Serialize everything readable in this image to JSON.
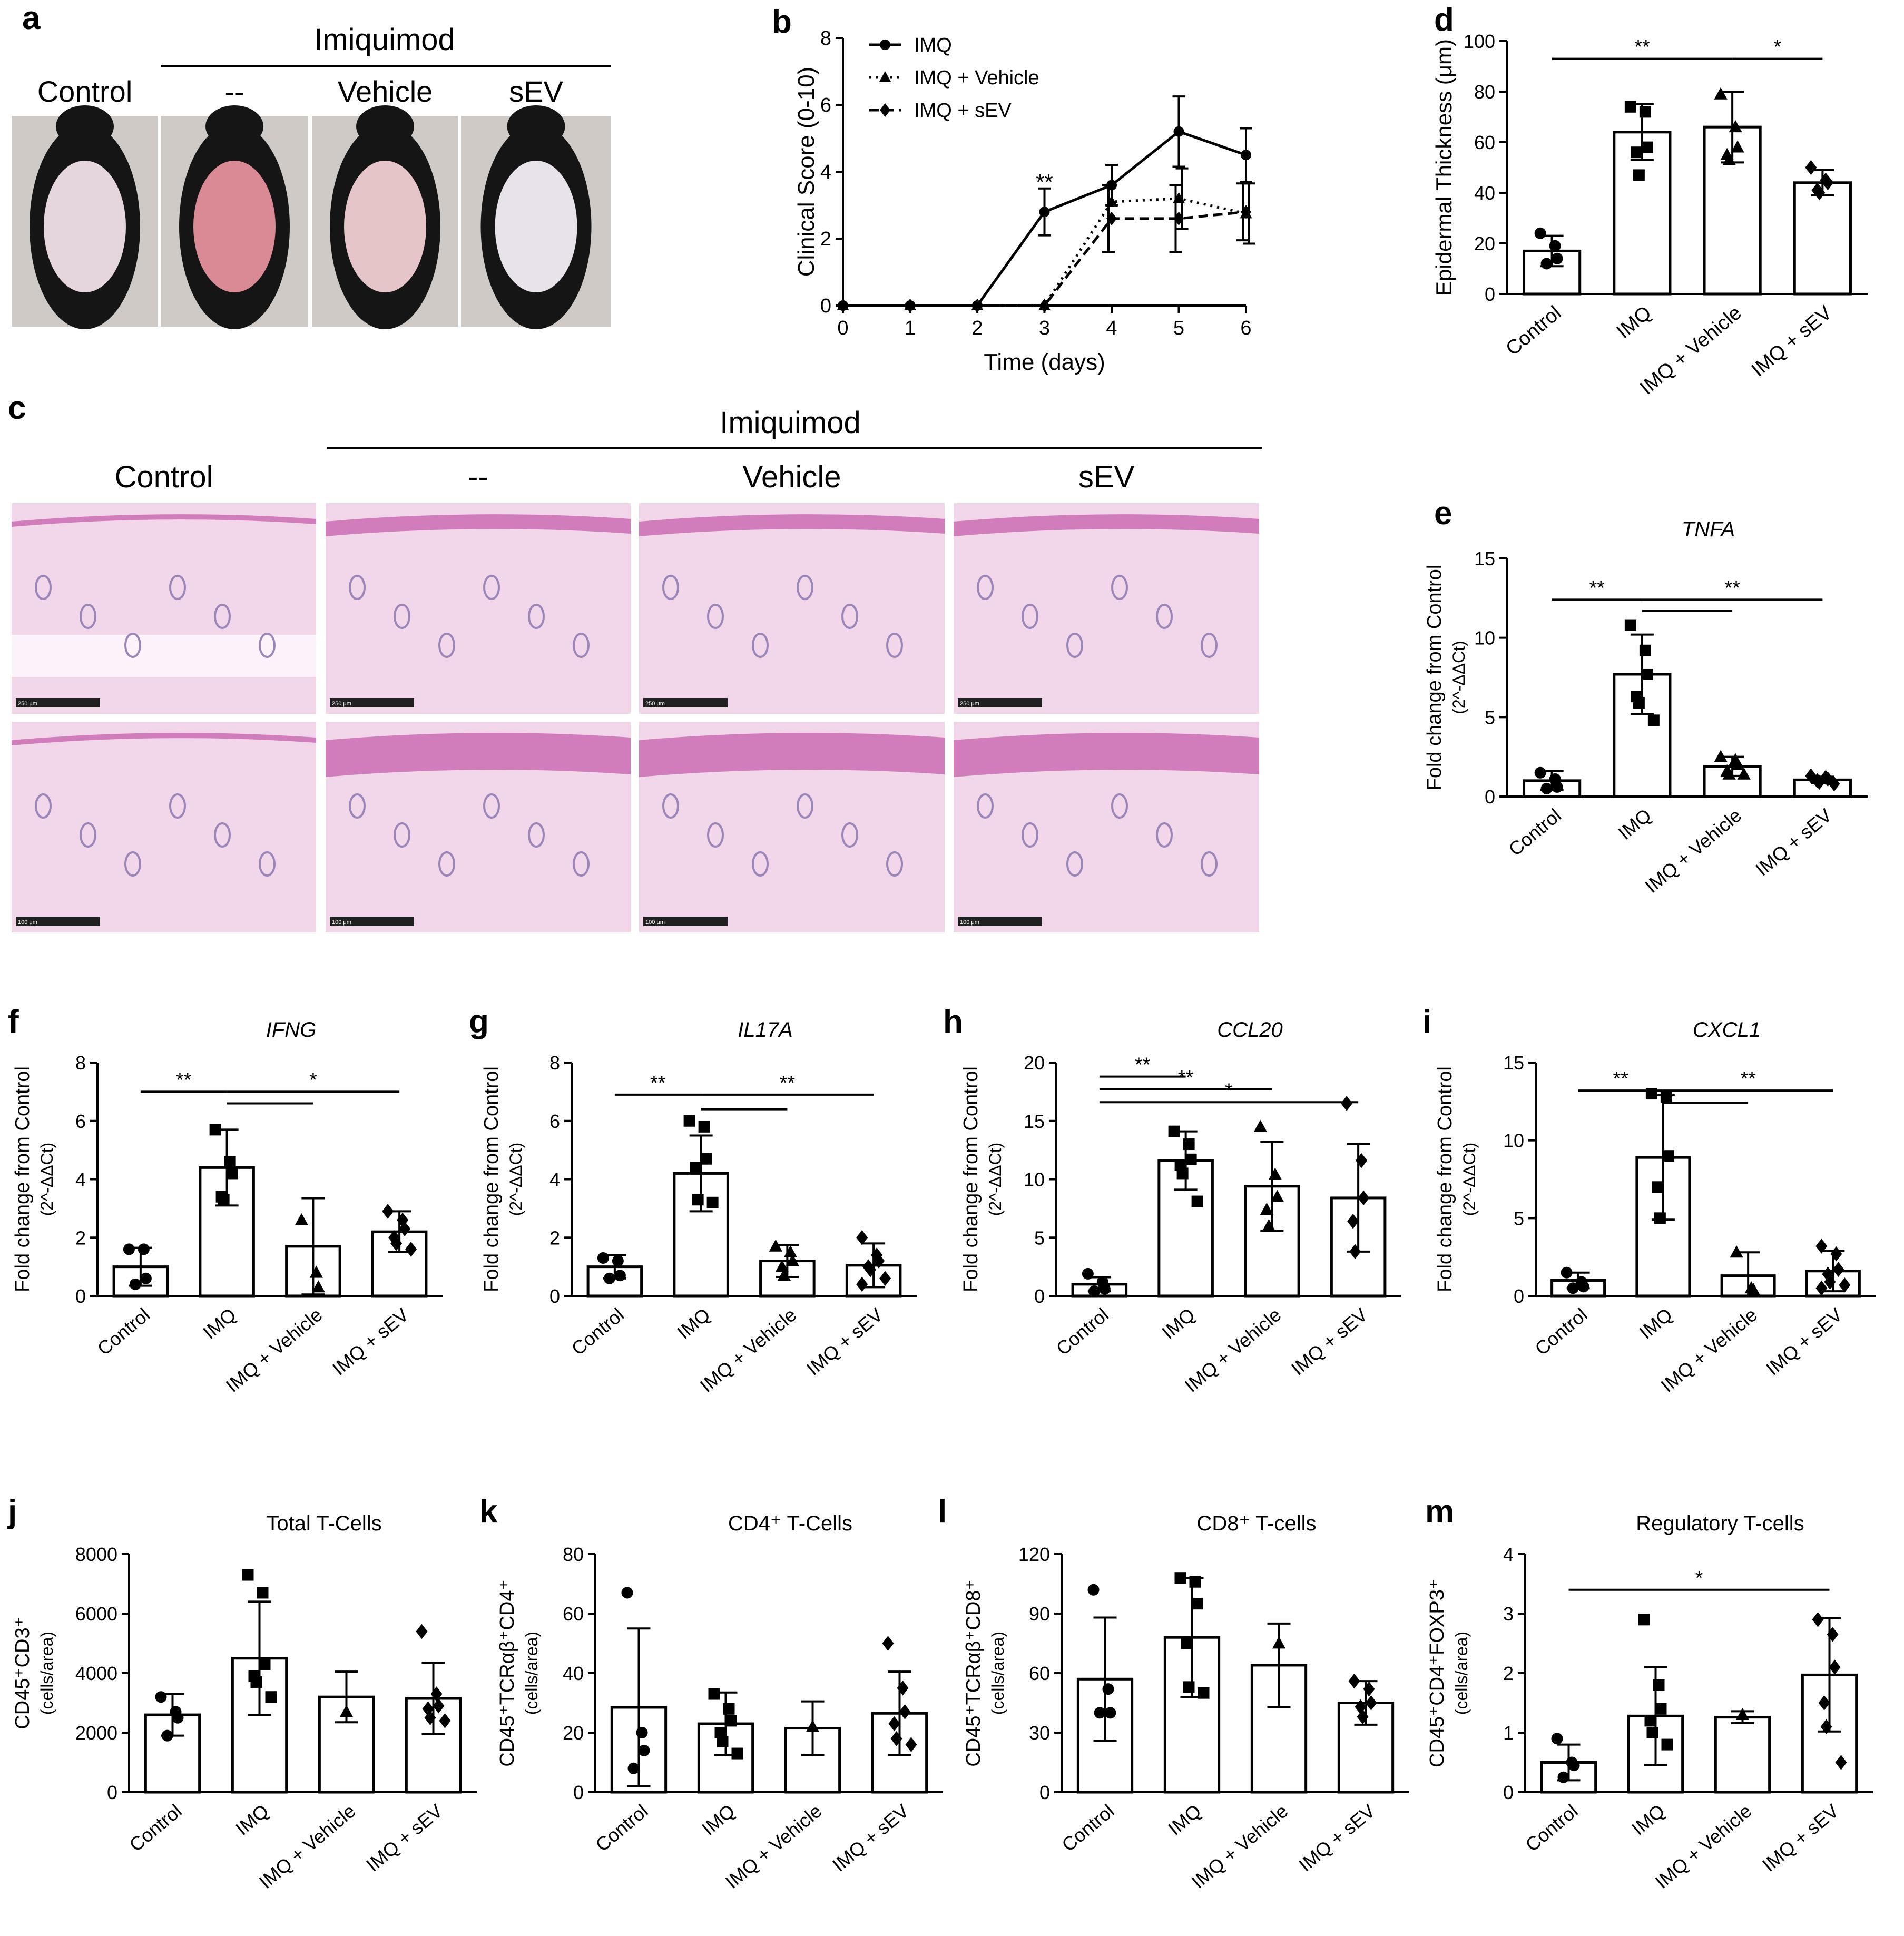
{
  "photo_panel": {
    "letter": "a",
    "group_label": "Imiquimod",
    "columns": [
      "Control",
      "--",
      "Vehicle",
      "sEV"
    ],
    "patch_colors": [
      "#e4d6dc",
      "#d98a94",
      "#e6c5c8",
      "#e8e2ea"
    ]
  },
  "histology_panel": {
    "letter": "c",
    "group_label": "Imiquimod",
    "columns": [
      "Control",
      "--",
      "Vehicle",
      "sEV"
    ],
    "top_scale_labels": [
      "250 μm",
      "250 μm",
      "250 μm",
      "250 μm"
    ],
    "bottom_scale_labels": [
      "100 μm",
      "100 μm",
      "100 μm",
      "100 μm"
    ]
  },
  "chart_data": [
    {
      "id": "b",
      "letter": "b",
      "type": "line",
      "xlabel": "Time (days)",
      "ylabel": "Clinical Score (0-10)",
      "xlim": [
        0,
        6
      ],
      "ylim": [
        0,
        8
      ],
      "xticks": [
        0,
        1,
        2,
        3,
        4,
        5,
        6
      ],
      "yticks": [
        0,
        2,
        4,
        6,
        8
      ],
      "legend_position": "top-left",
      "series": [
        {
          "name": "IMQ",
          "marker": "circle",
          "style": "solid",
          "x": [
            0,
            1,
            2,
            3,
            4,
            5,
            6
          ],
          "y": [
            0,
            0,
            0,
            2.8,
            3.6,
            5.2,
            4.5
          ],
          "err": [
            0,
            0,
            0,
            0.7,
            0.6,
            1.05,
            0.8
          ]
        },
        {
          "name": "IMQ + Vehicle",
          "marker": "triangle",
          "style": "dotted",
          "x": [
            0,
            1,
            2,
            3,
            4,
            5,
            6
          ],
          "y": [
            0,
            0,
            0,
            0,
            3.1,
            3.2,
            2.75
          ],
          "err": [
            0,
            0,
            0,
            0,
            0,
            0.9,
            0.9
          ]
        },
        {
          "name": "IMQ + sEV",
          "marker": "diamond",
          "style": "dashed",
          "x": [
            0,
            1,
            2,
            3,
            4,
            5,
            6
          ],
          "y": [
            0,
            0,
            0,
            0,
            2.6,
            2.6,
            2.8
          ],
          "err": [
            0,
            0,
            0,
            0,
            1.0,
            1.0,
            0.85
          ]
        }
      ],
      "annotations": [
        {
          "text": "**",
          "x": 3,
          "y": 3.65
        }
      ]
    },
    {
      "id": "d",
      "letter": "d",
      "type": "bar",
      "ylabel": "Epidermal Thickness (μm)",
      "ylim": [
        0,
        100
      ],
      "yticks": [
        0,
        20,
        40,
        60,
        80,
        100
      ],
      "categories": [
        "Control",
        "IMQ",
        "IMQ + Vehicle",
        "IMQ + sEV"
      ],
      "values": [
        17,
        64,
        66,
        44
      ],
      "errors": [
        6,
        11,
        14,
        5
      ],
      "points": [
        [
          24,
          19,
          14,
          12
        ],
        [
          74,
          72,
          58,
          56,
          47
        ],
        [
          79,
          66,
          58,
          55,
          53
        ],
        [
          50,
          45,
          44,
          41,
          40
        ]
      ],
      "significance": [
        {
          "from": 0,
          "to": 2,
          "y": 93,
          "text": "**"
        },
        {
          "from": 2,
          "to": 3,
          "y": 93,
          "text": "*"
        }
      ]
    },
    {
      "id": "e",
      "letter": "e",
      "type": "bar",
      "title": "TNFA",
      "ylabel": "Fold change from Control",
      "ylabel2": "(2^-ΔΔCt)",
      "ylim": [
        0,
        15
      ],
      "yticks": [
        0,
        5,
        10,
        15
      ],
      "categories": [
        "Control",
        "IMQ",
        "IMQ + Vehicle",
        "IMQ + sEV"
      ],
      "values": [
        1.0,
        7.7,
        1.9,
        1.05
      ],
      "errors": [
        0.6,
        2.5,
        0.6,
        0.2
      ],
      "points": [
        [
          1.5,
          1.1,
          0.6,
          0.5
        ],
        [
          10.8,
          9.2,
          7.7,
          6.3,
          5.9,
          4.8
        ],
        [
          2.5,
          2.3,
          2.0,
          1.6,
          1.4,
          1.4
        ],
        [
          1.3,
          1.2,
          1.1,
          1.0,
          0.9,
          0.8
        ]
      ],
      "significance": [
        {
          "from": 0,
          "to": 1,
          "y": 12.4,
          "text": "**"
        },
        {
          "from": 1,
          "to": 3,
          "y": 12.4,
          "text": "**"
        },
        {
          "from": 1,
          "to": 2,
          "y": 11.7,
          "text": ""
        }
      ]
    },
    {
      "id": "f",
      "letter": "f",
      "type": "bar",
      "title": "IFNG",
      "ylabel": "Fold change from Control",
      "ylabel2": "(2^-ΔΔCt)",
      "ylim": [
        0,
        8
      ],
      "yticks": [
        0,
        2,
        4,
        6,
        8
      ],
      "categories": [
        "Control",
        "IMQ",
        "IMQ + Vehicle",
        "IMQ + sEV"
      ],
      "values": [
        1.0,
        4.4,
        1.7,
        2.2
      ],
      "errors": [
        0.65,
        1.3,
        1.65,
        0.7
      ],
      "points": [
        [
          1.6,
          1.6,
          0.6,
          0.4
        ],
        [
          5.7,
          4.6,
          4.2,
          3.4,
          3.3
        ],
        [
          2.6,
          0.8,
          0.3
        ],
        [
          2.9,
          2.6,
          2.3,
          2.0,
          1.8,
          1.6
        ]
      ],
      "significance": [
        {
          "from": 0,
          "to": 1,
          "y": 7.0,
          "text": "**"
        },
        {
          "from": 1,
          "to": 3,
          "y": 7.0,
          "text": "*"
        },
        {
          "from": 1,
          "to": 2,
          "y": 6.6,
          "text": ""
        }
      ]
    },
    {
      "id": "g",
      "letter": "g",
      "type": "bar",
      "title": "IL17A",
      "ylabel": "Fold change from Control",
      "ylabel2": "(2^-ΔΔCt)",
      "ylim": [
        0,
        8
      ],
      "yticks": [
        0,
        2,
        4,
        6,
        8
      ],
      "categories": [
        "Control",
        "IMQ",
        "IMQ + Vehicle",
        "IMQ + sEV"
      ],
      "values": [
        1.0,
        4.2,
        1.2,
        1.05
      ],
      "errors": [
        0.4,
        1.3,
        0.55,
        0.75
      ],
      "points": [
        [
          1.3,
          1.2,
          0.7,
          0.6
        ],
        [
          6.0,
          5.8,
          4.7,
          4.4,
          3.3,
          3.2
        ],
        [
          1.7,
          1.5,
          1.2,
          1.0,
          0.7
        ],
        [
          2.0,
          1.4,
          1.2,
          1.0,
          0.9,
          0.6,
          0.4
        ]
      ],
      "significance": [
        {
          "from": 0,
          "to": 1,
          "y": 6.9,
          "text": "**"
        },
        {
          "from": 1,
          "to": 3,
          "y": 6.9,
          "text": "**"
        },
        {
          "from": 1,
          "to": 2,
          "y": 6.4,
          "text": ""
        }
      ]
    },
    {
      "id": "h",
      "letter": "h",
      "type": "bar",
      "title": "CCL20",
      "ylabel": "Fold change from Control",
      "ylabel2": "(2^-ΔΔCt)",
      "ylim": [
        0,
        20
      ],
      "yticks": [
        0,
        5,
        10,
        15,
        20
      ],
      "categories": [
        "Control",
        "IMQ",
        "IMQ + Vehicle",
        "IMQ + sEV"
      ],
      "values": [
        1.0,
        11.6,
        9.4,
        8.4
      ],
      "errors": [
        0.6,
        2.5,
        3.8,
        4.6
      ],
      "points": [
        [
          1.9,
          1.2,
          0.6,
          0.4
        ],
        [
          14.1,
          13.0,
          11.7,
          11.2,
          10.5,
          8.1
        ],
        [
          14.5,
          10.4,
          8.5,
          7.4,
          6.0
        ],
        [
          16.5,
          11.6,
          8.4,
          6.4,
          3.8
        ]
      ],
      "significance": [
        {
          "from": 0,
          "to": 1,
          "y": 18.8,
          "text": "**"
        },
        {
          "from": 0,
          "to": 2,
          "y": 17.7,
          "text": "**"
        },
        {
          "from": 0,
          "to": 3,
          "y": 16.6,
          "text": "*"
        }
      ]
    },
    {
      "id": "i",
      "letter": "i",
      "type": "bar",
      "title": "CXCL1",
      "ylabel": "Fold change from Control",
      "ylabel2": "(2^-ΔΔCt)",
      "ylim": [
        0,
        15
      ],
      "yticks": [
        0,
        5,
        10,
        15
      ],
      "categories": [
        "Control",
        "IMQ",
        "IMQ + Vehicle",
        "IMQ + sEV"
      ],
      "values": [
        1.0,
        8.9,
        1.3,
        1.6
      ],
      "errors": [
        0.5,
        4.0,
        1.5,
        1.3
      ],
      "points": [
        [
          1.5,
          0.9,
          0.6,
          0.5
        ],
        [
          13.0,
          12.8,
          9.0,
          7.0,
          5.0
        ],
        [
          2.8,
          0.5,
          0.4
        ],
        [
          3.2,
          2.7,
          1.7,
          1.4,
          0.9,
          0.7,
          0.5
        ]
      ],
      "significance": [
        {
          "from": 0,
          "to": 1,
          "y": 13.2,
          "text": "**"
        },
        {
          "from": 1,
          "to": 3,
          "y": 13.2,
          "text": "**"
        },
        {
          "from": 1,
          "to": 2,
          "y": 12.4,
          "text": ""
        }
      ]
    },
    {
      "id": "j",
      "letter": "j",
      "type": "bar",
      "title": "Total T-Cells",
      "ylabel": "CD45⁺CD3⁺",
      "ylabel2": "(cells/area)",
      "ylim": [
        0,
        8000
      ],
      "yticks": [
        0,
        2000,
        4000,
        6000,
        8000
      ],
      "categories": [
        "Control",
        "IMQ",
        "IMQ + Vehicle",
        "IMQ + sEV"
      ],
      "values": [
        2600,
        4500,
        3200,
        3150
      ],
      "errors": [
        700,
        1900,
        850,
        1200
      ],
      "points": [
        [
          3200,
          2700,
          2500,
          1900
        ],
        [
          7300,
          6700,
          4300,
          3900,
          3700,
          3200
        ],
        [
          2700
        ],
        [
          5400,
          3300,
          2900,
          2800,
          2500,
          2400
        ]
      ],
      "significance": []
    },
    {
      "id": "k",
      "letter": "k",
      "type": "bar",
      "title": "CD4⁺ T-Cells",
      "ylabel": "CD45⁺TCRαβ⁺CD4⁺",
      "ylabel2": "(cells/area)",
      "ylim": [
        0,
        80
      ],
      "yticks": [
        0,
        20,
        40,
        60,
        80
      ],
      "categories": [
        "Control",
        "IMQ",
        "IMQ + Vehicle",
        "IMQ + sEV"
      ],
      "values": [
        28.5,
        23,
        21.5,
        26.5
      ],
      "errors": [
        26.5,
        10.5,
        9,
        14
      ],
      "points": [
        [
          67,
          20,
          14,
          8
        ],
        [
          33,
          28,
          24,
          20,
          17,
          13
        ],
        [
          22
        ],
        [
          50,
          35,
          27,
          23,
          18,
          16
        ]
      ],
      "significance": []
    },
    {
      "id": "l",
      "letter": "l",
      "type": "bar",
      "title": "CD8⁺ T-cells",
      "ylabel": "CD45⁺TCRαβ⁺CD8⁺",
      "ylabel2": "(cells/area)",
      "ylim": [
        0,
        120
      ],
      "yticks": [
        0,
        30,
        60,
        90,
        120
      ],
      "categories": [
        "Control",
        "IMQ",
        "IMQ + Vehicle",
        "IMQ + sEV"
      ],
      "values": [
        57,
        78,
        64,
        45
      ],
      "errors": [
        31,
        30,
        21,
        11
      ],
      "points": [
        [
          102,
          52,
          40,
          40
        ],
        [
          108,
          106,
          95,
          75,
          53,
          50
        ],
        [
          75
        ],
        [
          56,
          52,
          45,
          43,
          38
        ]
      ],
      "significance": []
    },
    {
      "id": "m",
      "letter": "m",
      "type": "bar",
      "title": "Regulatory T-cells",
      "ylabel": "CD45⁺CD4⁺FOXP3⁺",
      "ylabel2": "(cells/area)",
      "ylim": [
        0,
        4
      ],
      "yticks": [
        0,
        1,
        2,
        3,
        4
      ],
      "categories": [
        "Control",
        "IMQ",
        "IMQ + Vehicle",
        "IMQ + sEV"
      ],
      "values": [
        0.5,
        1.28,
        1.26,
        1.97
      ],
      "errors": [
        0.3,
        0.82,
        0.1,
        0.95
      ],
      "points": [
        [
          0.9,
          0.5,
          0.45,
          0.25
        ],
        [
          2.9,
          1.8,
          1.4,
          1.2,
          1.0,
          0.8
        ],
        [
          1.3
        ],
        [
          2.9,
          2.65,
          2.1,
          1.5,
          1.1,
          0.5
        ]
      ],
      "significance": [
        {
          "from": 0,
          "to": 3,
          "y": 3.4,
          "text": "*"
        }
      ]
    }
  ]
}
